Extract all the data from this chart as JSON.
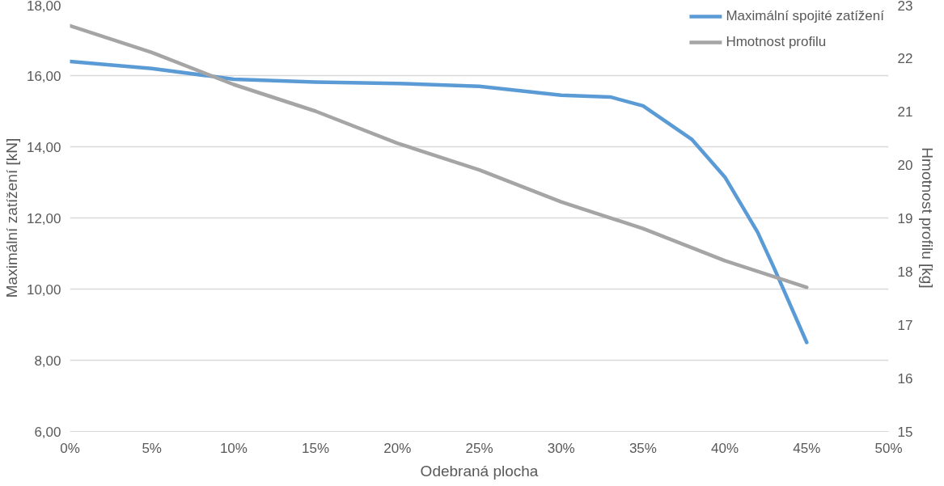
{
  "chart_data": {
    "type": "line",
    "xlabel": "Odebraná plocha",
    "ylabel": "Maximální zatížení [kN]",
    "y2label": "Hmotnost profilu [kg]",
    "xlim": [
      0,
      50
    ],
    "xticks": [
      {
        "value": 0,
        "label": "0%"
      },
      {
        "value": 5,
        "label": "5%"
      },
      {
        "value": 10,
        "label": "10%"
      },
      {
        "value": 15,
        "label": "15%"
      },
      {
        "value": 20,
        "label": "20%"
      },
      {
        "value": 25,
        "label": "25%"
      },
      {
        "value": 30,
        "label": "30%"
      },
      {
        "value": 35,
        "label": "35%"
      },
      {
        "value": 40,
        "label": "40%"
      },
      {
        "value": 45,
        "label": "45%"
      },
      {
        "value": 50,
        "label": "50%"
      }
    ],
    "ylim": [
      6,
      18
    ],
    "yticks": [
      {
        "value": 6,
        "label": "6,00"
      },
      {
        "value": 8,
        "label": "8,00"
      },
      {
        "value": 10,
        "label": "10,00"
      },
      {
        "value": 12,
        "label": "12,00"
      },
      {
        "value": 14,
        "label": "14,00"
      },
      {
        "value": 16,
        "label": "16,00"
      },
      {
        "value": 18,
        "label": "18,00"
      }
    ],
    "y2lim": [
      15,
      23
    ],
    "y2ticks": [
      15,
      16,
      17,
      18,
      19,
      20,
      21,
      22,
      23
    ],
    "grid": "y",
    "legend": "top right",
    "marker": "none",
    "line_style": "solid",
    "series": [
      {
        "name": "Maximální spojité zatížení",
        "color": "#5b9bd5",
        "x": [
          0,
          5,
          10,
          15,
          20,
          25,
          30,
          33,
          35,
          38,
          40,
          42,
          43,
          45
        ],
        "values": [
          16.4,
          16.2,
          15.9,
          15.82,
          15.78,
          15.7,
          15.45,
          15.4,
          15.15,
          14.2,
          13.15,
          11.6,
          10.6,
          8.5
        ]
      },
      {
        "name": "Hmotnost profilu",
        "color": "#a5a5a5",
        "axis": "y2",
        "x": [
          0,
          5,
          10,
          15,
          20,
          25,
          30,
          35,
          40,
          45
        ],
        "values": [
          22.6,
          22.1,
          21.5,
          21.0,
          20.4,
          19.9,
          19.3,
          18.8,
          18.2,
          17.7
        ]
      }
    ]
  }
}
